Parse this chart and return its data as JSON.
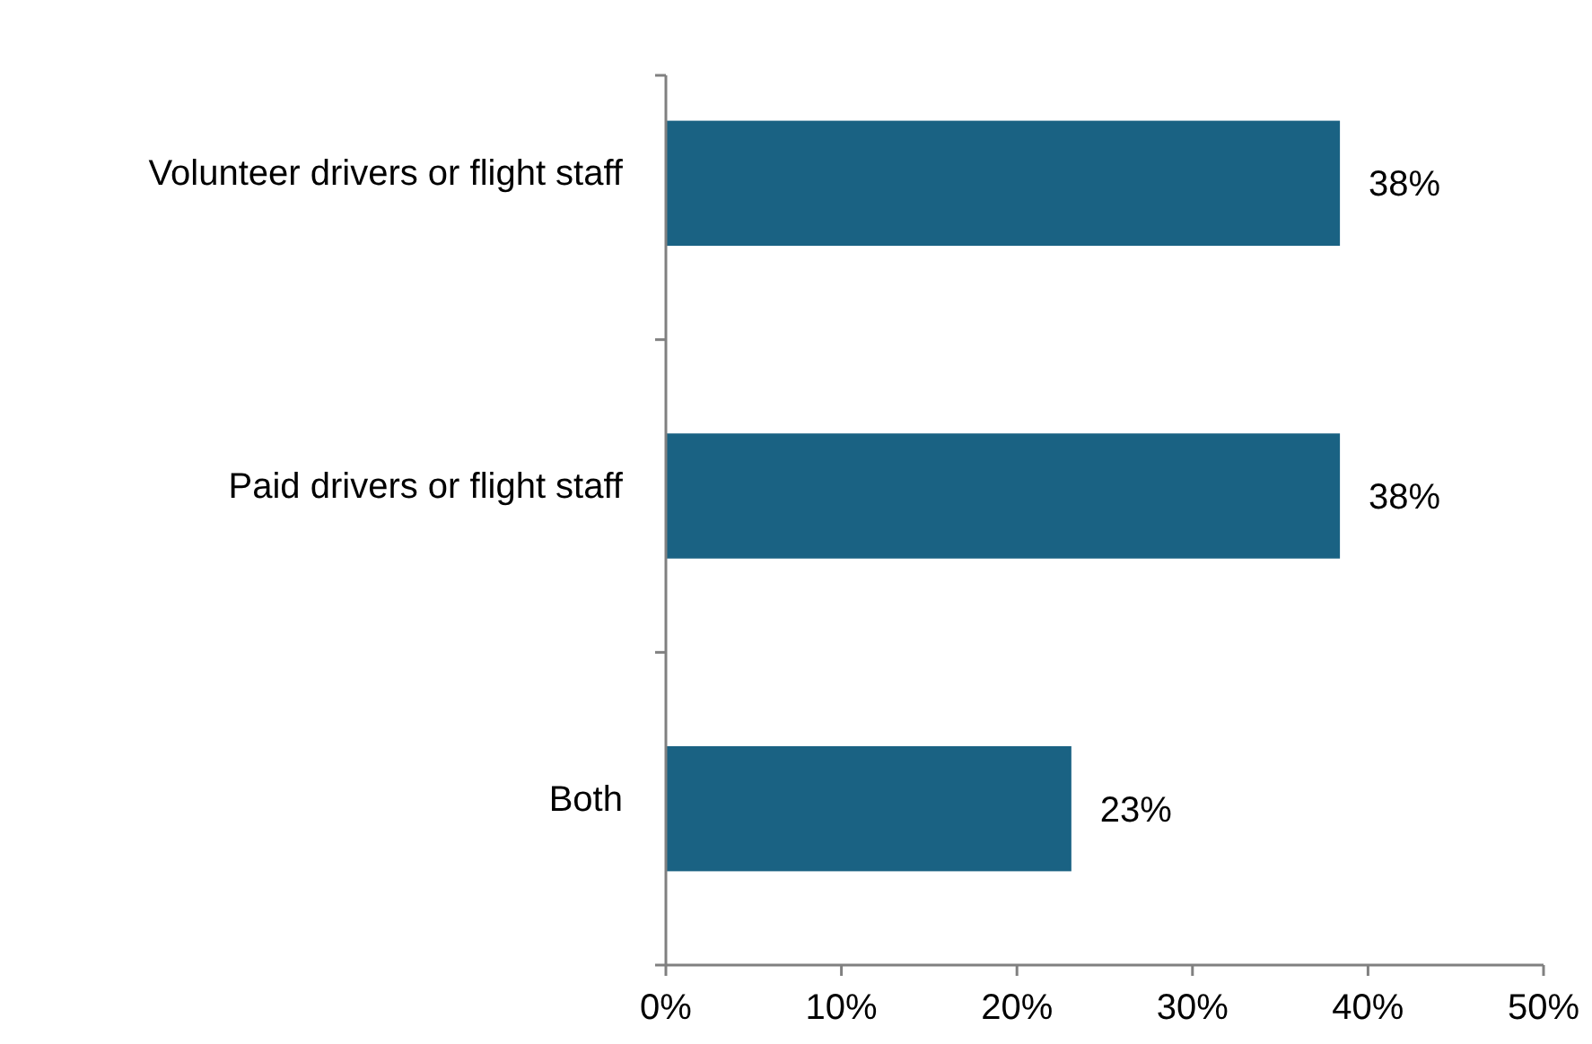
{
  "chart_data": {
    "type": "bar",
    "orientation": "horizontal",
    "categories": [
      "Volunteer drivers or flight staff",
      "Paid drivers or flight staff",
      "Both"
    ],
    "values": [
      38.4,
      38.4,
      23.1
    ],
    "value_labels": [
      "38%",
      "38%",
      "23%"
    ],
    "color": "#1a6283",
    "xlim": [
      0,
      50
    ],
    "xticks": [
      {
        "value": 0,
        "label": "0%"
      },
      {
        "value": 10,
        "label": "10%"
      },
      {
        "value": 20,
        "label": "20%"
      },
      {
        "value": 30,
        "label": "30%"
      },
      {
        "value": 40,
        "label": "40%"
      },
      {
        "value": 50,
        "label": "50%"
      }
    ],
    "grid": false
  }
}
